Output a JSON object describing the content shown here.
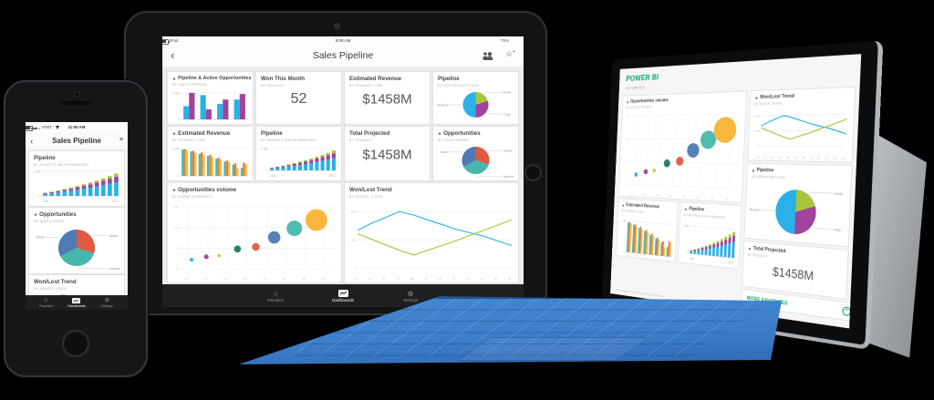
{
  "icons": {
    "star": "★",
    "star_outline": "☆",
    "gear": "⚙",
    "back": "‹",
    "list_menu": "≡",
    "plus": "+",
    "chevron_right": "›"
  },
  "colors": {
    "blue": "#2BB0E8",
    "purple": "#A0439E",
    "green": "#A6C63C",
    "teal": "#46B8AE",
    "orange": "#E25A40",
    "amber": "#F9B231",
    "slate": "#4E7BB4",
    "lime": "#BCD531",
    "pine": "#1F7A67",
    "tealbar": "#3EBDB2",
    "orangebar": "#F4744B",
    "yellowbar": "#FBBF2D",
    "powerbi_green": "#00A65F"
  },
  "iphone": {
    "status": {
      "carrier": "AT&T",
      "time": "11:06 AM"
    },
    "nav": {
      "title": "Sales Pipeline"
    },
    "tiles": [
      {
        "title": "Pipeline",
        "subtitle": "BY MONTH & SALES MANAGER"
      },
      {
        "title": "Opportunities",
        "subtitle": "BY SALES AGENT"
      },
      {
        "title": "Won/Lost Trend",
        "subtitle": "BY MONTH, STAGE"
      }
    ],
    "tabbar": [
      {
        "label": "Favorites"
      },
      {
        "label": "Dashboards",
        "active": true
      },
      {
        "label": "Settings"
      }
    ]
  },
  "ipad": {
    "status": {
      "device": "iPad",
      "time": "8:00 AM",
      "battery": "75%"
    },
    "nav": {
      "title": "Sales Pipeline"
    },
    "tiles": [
      {
        "title": "Pipeline & Active Opportunities",
        "subtitle": "BY SALES PERSON"
      },
      {
        "title": "Won This Month",
        "subtitle": "BY PRODUCT",
        "value": "52"
      },
      {
        "title": "Estimated Revenue",
        "subtitle": "BY PRODUCT LINE",
        "value": "$1458M"
      },
      {
        "title": "Pipeline",
        "subtitle": "BY OPPORTUNITY SIZE"
      },
      {
        "title": "Estimated Revenue",
        "subtitle": "BY PRODUCT LINE"
      },
      {
        "title": "Pipeline",
        "subtitle": "BY MONTH & SALES MANAGER"
      },
      {
        "title": "Total Projected",
        "subtitle": "BY PRODUCT",
        "value": "$1458M"
      },
      {
        "title": "Opportunities",
        "subtitle": "BY SALES AGENT"
      },
      {
        "title": "Opportunities volume",
        "subtitle": "BY AGENT & PRODUCT"
      },
      {
        "title": "Won/Lost Trend",
        "subtitle": "BY MONTH, STAGE"
      }
    ],
    "tabbar": [
      {
        "label": "Favorites"
      },
      {
        "label": "Dashboards",
        "active": true
      },
      {
        "label": "Settings"
      }
    ]
  },
  "surface": {
    "logo": "POWER BI",
    "breadcrumb": "FAVORITES",
    "tiles": [
      {
        "title": "Opportunities volume",
        "subtitle": "BY AGENT & PRODUCT"
      },
      {
        "title": "Won/Lost Trend",
        "subtitle": "BY MONTH, STAGE"
      },
      {
        "title": "Pipeline",
        "subtitle": "BY OPPORTUNITY SIZE"
      },
      {
        "title": "Estimated Revenue",
        "subtitle": "BY PRODUCT LINE"
      },
      {
        "title": "Pipeline",
        "subtitle": "BY MONTH & SALES MANAGER"
      },
      {
        "title": "Total Projected",
        "subtitle": "BY PRODUCT",
        "value": "$1458M"
      }
    ],
    "more_label": "MORE FAVORITES"
  },
  "charts": {
    "pipeline_active": {
      "type": "groupbars",
      "ymax": 2.4,
      "ytop": "2.4M",
      "ybottom": "0",
      "colors": [
        "blue",
        "purple"
      ],
      "groups": [
        [
          1.2,
          2.4
        ],
        [
          2.2,
          0.9
        ],
        [
          1.4,
          1.8
        ],
        [
          1.8,
          2.3
        ]
      ]
    },
    "estimated_revenue_bars": {
      "type": "groupbars",
      "ymax": 2.4,
      "ytop": "2.4M",
      "ybottom": "0",
      "colors": [
        "tealbar",
        "orangebar",
        "yellowbar"
      ],
      "groups": [
        [
          2.3,
          2.35,
          2.25
        ],
        [
          2.15,
          2.2,
          2.05
        ],
        [
          1.95,
          2.05,
          1.85
        ],
        [
          1.75,
          1.85,
          1.65
        ],
        [
          1.5,
          1.6,
          1.45
        ],
        [
          1.25,
          1.35,
          1.2
        ],
        [
          1.0,
          1.1,
          0.65
        ],
        [
          0.7,
          1.15,
          1.05
        ]
      ]
    },
    "pipeline_stacked": {
      "type": "stackbars",
      "ymax": 2.4,
      "ytop": "2.4M",
      "ybottom": "0",
      "xfirst": "JAN",
      "xlast": "DEC",
      "colors": [
        "blue",
        "purple",
        "green"
      ],
      "bars": [
        [
          0.18,
          0.08,
          0.05
        ],
        [
          0.25,
          0.1,
          0.06
        ],
        [
          0.33,
          0.12,
          0.08
        ],
        [
          0.42,
          0.16,
          0.09
        ],
        [
          0.5,
          0.2,
          0.11
        ],
        [
          0.6,
          0.24,
          0.13
        ],
        [
          0.7,
          0.28,
          0.15
        ],
        [
          0.8,
          0.33,
          0.17
        ],
        [
          0.92,
          0.38,
          0.19
        ],
        [
          1.05,
          0.44,
          0.22
        ],
        [
          1.18,
          0.5,
          0.25
        ],
        [
          1.32,
          0.56,
          0.3
        ]
      ]
    },
    "pipeline_pie": {
      "type": "pie",
      "slices": [
        {
          "label": "Small",
          "value": 20,
          "color": "green"
        },
        {
          "label": "Large",
          "value": 30,
          "color": "purple"
        },
        {
          "label": "Medium",
          "value": 50,
          "color": "blue"
        }
      ]
    },
    "opportunities_pie": {
      "type": "pie",
      "slices": [
        {
          "label": "James",
          "value": 30,
          "color": "orange"
        },
        {
          "label": "Jessica",
          "value": 37,
          "color": "teal"
        },
        {
          "label": "Adam",
          "value": 33,
          "color": "slate"
        }
      ]
    },
    "opportunities_volume": {
      "type": "bubble",
      "ymax": 15,
      "xmax": 8.5,
      "yticks": [
        {
          "v": 0,
          "label": "0"
        },
        {
          "v": 5,
          "label": "5"
        },
        {
          "v": 10,
          "label": "10"
        },
        {
          "v": 15,
          "label": "15"
        }
      ],
      "xlabels": [
        "Adam",
        "Ben",
        "Dan",
        "James",
        "Jessica",
        "Lonnie",
        "Nick",
        "Sonya"
      ],
      "points": [
        {
          "x": 0.7,
          "y": 2.2,
          "r": 2.5,
          "color": "blue"
        },
        {
          "x": 1.5,
          "y": 2.9,
          "r": 3,
          "color": "purple"
        },
        {
          "x": 2.2,
          "y": 3.2,
          "r": 2.2,
          "color": "lime"
        },
        {
          "x": 3.2,
          "y": 4.8,
          "r": 4.5,
          "color": "pine"
        },
        {
          "x": 4.2,
          "y": 5.3,
          "r": 5,
          "color": "orange"
        },
        {
          "x": 5.2,
          "y": 7.6,
          "r": 8,
          "color": "slate"
        },
        {
          "x": 6.3,
          "y": 9.8,
          "r": 10,
          "color": "teal"
        },
        {
          "x": 7.5,
          "y": 11.8,
          "r": 14,
          "color": "amber"
        }
      ]
    },
    "won_lost_trend": {
      "type": "line",
      "ymax": 2.6,
      "yticks": [
        {
          "v": 0,
          "label": "0"
        },
        {
          "v": 1.2,
          "label": "1.2M"
        },
        {
          "v": 2.4,
          "label": "2.4M"
        }
      ],
      "xlabels": [
        "January",
        "February",
        "March",
        "April",
        "May",
        "June",
        "July",
        "August",
        "September",
        "October",
        "November",
        "December"
      ],
      "series": [
        {
          "color": "blue",
          "values": [
            1.6,
            1.9,
            2.15,
            2.4,
            2.25,
            2.05,
            1.85,
            1.65,
            1.5,
            1.35,
            1.15,
            0.95
          ]
        },
        {
          "color": "green",
          "values": [
            1.45,
            1.22,
            0.98,
            0.75,
            0.55,
            0.75,
            0.95,
            1.15,
            1.38,
            1.6,
            1.82,
            2.05
          ]
        }
      ]
    }
  }
}
